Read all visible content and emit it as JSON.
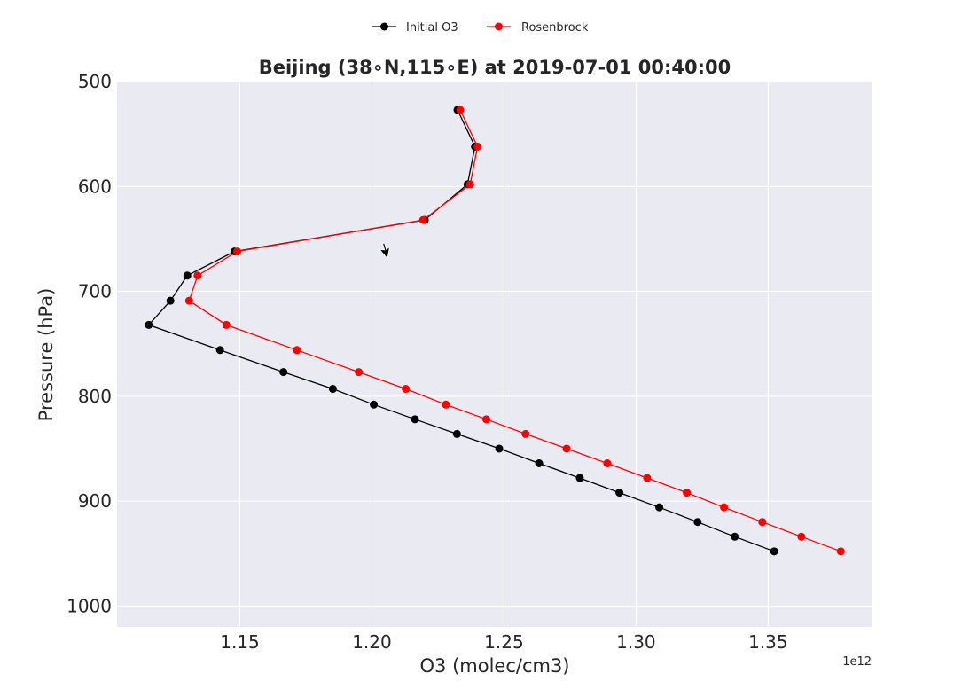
{
  "chart_data": {
    "type": "line",
    "title": "Beijing (38$^\\circ$N,115$^\\circ$E) at 2019-07-01 00:40:00",
    "title_display": "Beijing (38∘N,115∘E) at 2019-07-01 00:40:00",
    "xlabel": "O3 (molec/cm3)",
    "ylabel": "Pressure (hPa)",
    "x_offset_label": "1e12",
    "xlim": [
      1.1035,
      1.3895
    ],
    "ylim": [
      1020,
      500
    ],
    "y_inverted": true,
    "grid": true,
    "background": "#eaeaf2",
    "legend_position": "top-center",
    "x_ticks": [
      "1.15",
      "1.20",
      "1.25",
      "1.30",
      "1.35"
    ],
    "y_ticks": [
      "500",
      "600",
      "700",
      "800",
      "900",
      "1000"
    ],
    "x_tick_values": [
      1.15,
      1.2,
      1.25,
      1.3,
      1.35
    ],
    "y_tick_values": [
      500,
      600,
      700,
      800,
      900,
      1000
    ],
    "series": [
      {
        "name": "Initial O3",
        "color": "#000000",
        "x": [
          1.2324,
          1.239,
          1.2362,
          1.22,
          1.148,
          1.1301,
          1.1237,
          1.1155,
          1.1425,
          1.1665,
          1.1852,
          1.2007,
          1.2163,
          1.2322,
          1.2482,
          1.2633,
          1.2787,
          1.2937,
          1.3088,
          1.3233,
          1.3374,
          1.3523
        ],
        "y": [
          527,
          562,
          598,
          632,
          662,
          685,
          709,
          732,
          756,
          777,
          793,
          808,
          822,
          836,
          850,
          864,
          878,
          892,
          906,
          920,
          934,
          948
        ]
      },
      {
        "name": "Rosenbrock",
        "color": "#ff0000",
        "x": [
          1.2334,
          1.24,
          1.2372,
          1.2194,
          1.149,
          1.134,
          1.1308,
          1.1449,
          1.1716,
          1.195,
          1.2128,
          1.228,
          1.2433,
          1.2582,
          1.2737,
          1.2891,
          1.3042,
          1.3192,
          1.3333,
          1.3478,
          1.3626,
          1.3775
        ],
        "y": [
          527,
          562,
          598,
          632,
          662,
          685,
          709,
          732,
          756,
          777,
          793,
          808,
          822,
          836,
          850,
          864,
          878,
          892,
          906,
          920,
          934,
          948
        ]
      }
    ]
  },
  "icons": {
    "cursor": "arrow-cursor-icon"
  }
}
